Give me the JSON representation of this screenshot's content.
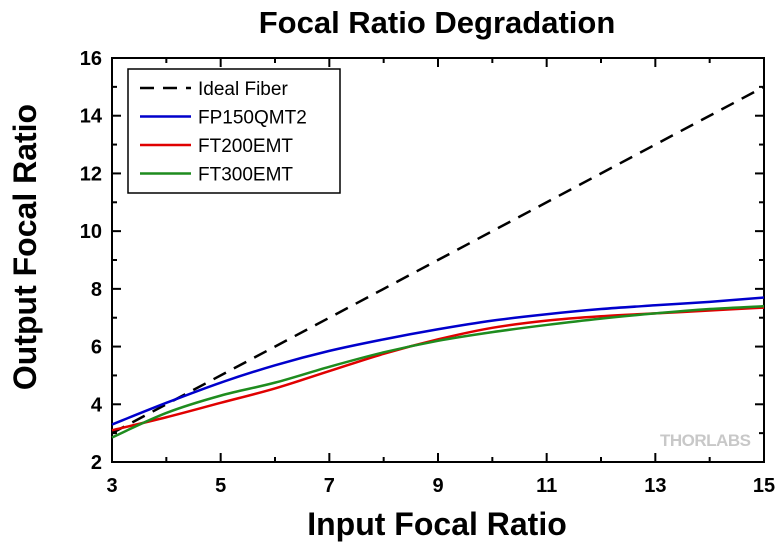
{
  "chart_data": {
    "type": "line",
    "title": "Focal Ratio Degradation",
    "xlabel": "Input Focal Ratio",
    "ylabel": "Output Focal Ratio",
    "xlim": [
      3,
      15
    ],
    "ylim": [
      2,
      16
    ],
    "x_ticks": [
      "3",
      "5",
      "7",
      "9",
      "11",
      "13",
      "15"
    ],
    "y_ticks": [
      "2",
      "4",
      "6",
      "8",
      "10",
      "12",
      "14",
      "16"
    ],
    "grid": false,
    "legend_position": "top-left",
    "watermark": "THORLABS",
    "series": [
      {
        "name": "Ideal Fiber",
        "color": "#000000",
        "dash": "dashed",
        "x": [
          3,
          15
        ],
        "y": [
          3,
          15
        ]
      },
      {
        "name": "FP150QMT2",
        "color": "#0000cc",
        "dash": "solid",
        "x": [
          3,
          4,
          5,
          6,
          7,
          8,
          9,
          10,
          11,
          12,
          13,
          14,
          15
        ],
        "y": [
          3.3,
          4.05,
          4.75,
          5.35,
          5.85,
          6.25,
          6.6,
          6.9,
          7.12,
          7.3,
          7.43,
          7.55,
          7.7
        ]
      },
      {
        "name": "FT200EMT",
        "color": "#e00000",
        "dash": "solid",
        "x": [
          3,
          4,
          5,
          6,
          7,
          8,
          9,
          10,
          11,
          12,
          13,
          14,
          15
        ],
        "y": [
          3.1,
          3.55,
          4.05,
          4.55,
          5.15,
          5.75,
          6.25,
          6.65,
          6.9,
          7.05,
          7.15,
          7.25,
          7.35
        ]
      },
      {
        "name": "FT300EMT",
        "color": "#1e8c1e",
        "dash": "solid",
        "x": [
          3,
          4,
          5,
          6,
          7,
          8,
          9,
          10,
          11,
          12,
          13,
          14,
          15
        ],
        "y": [
          2.85,
          3.7,
          4.3,
          4.75,
          5.3,
          5.8,
          6.2,
          6.5,
          6.75,
          6.97,
          7.15,
          7.3,
          7.4
        ]
      }
    ]
  }
}
